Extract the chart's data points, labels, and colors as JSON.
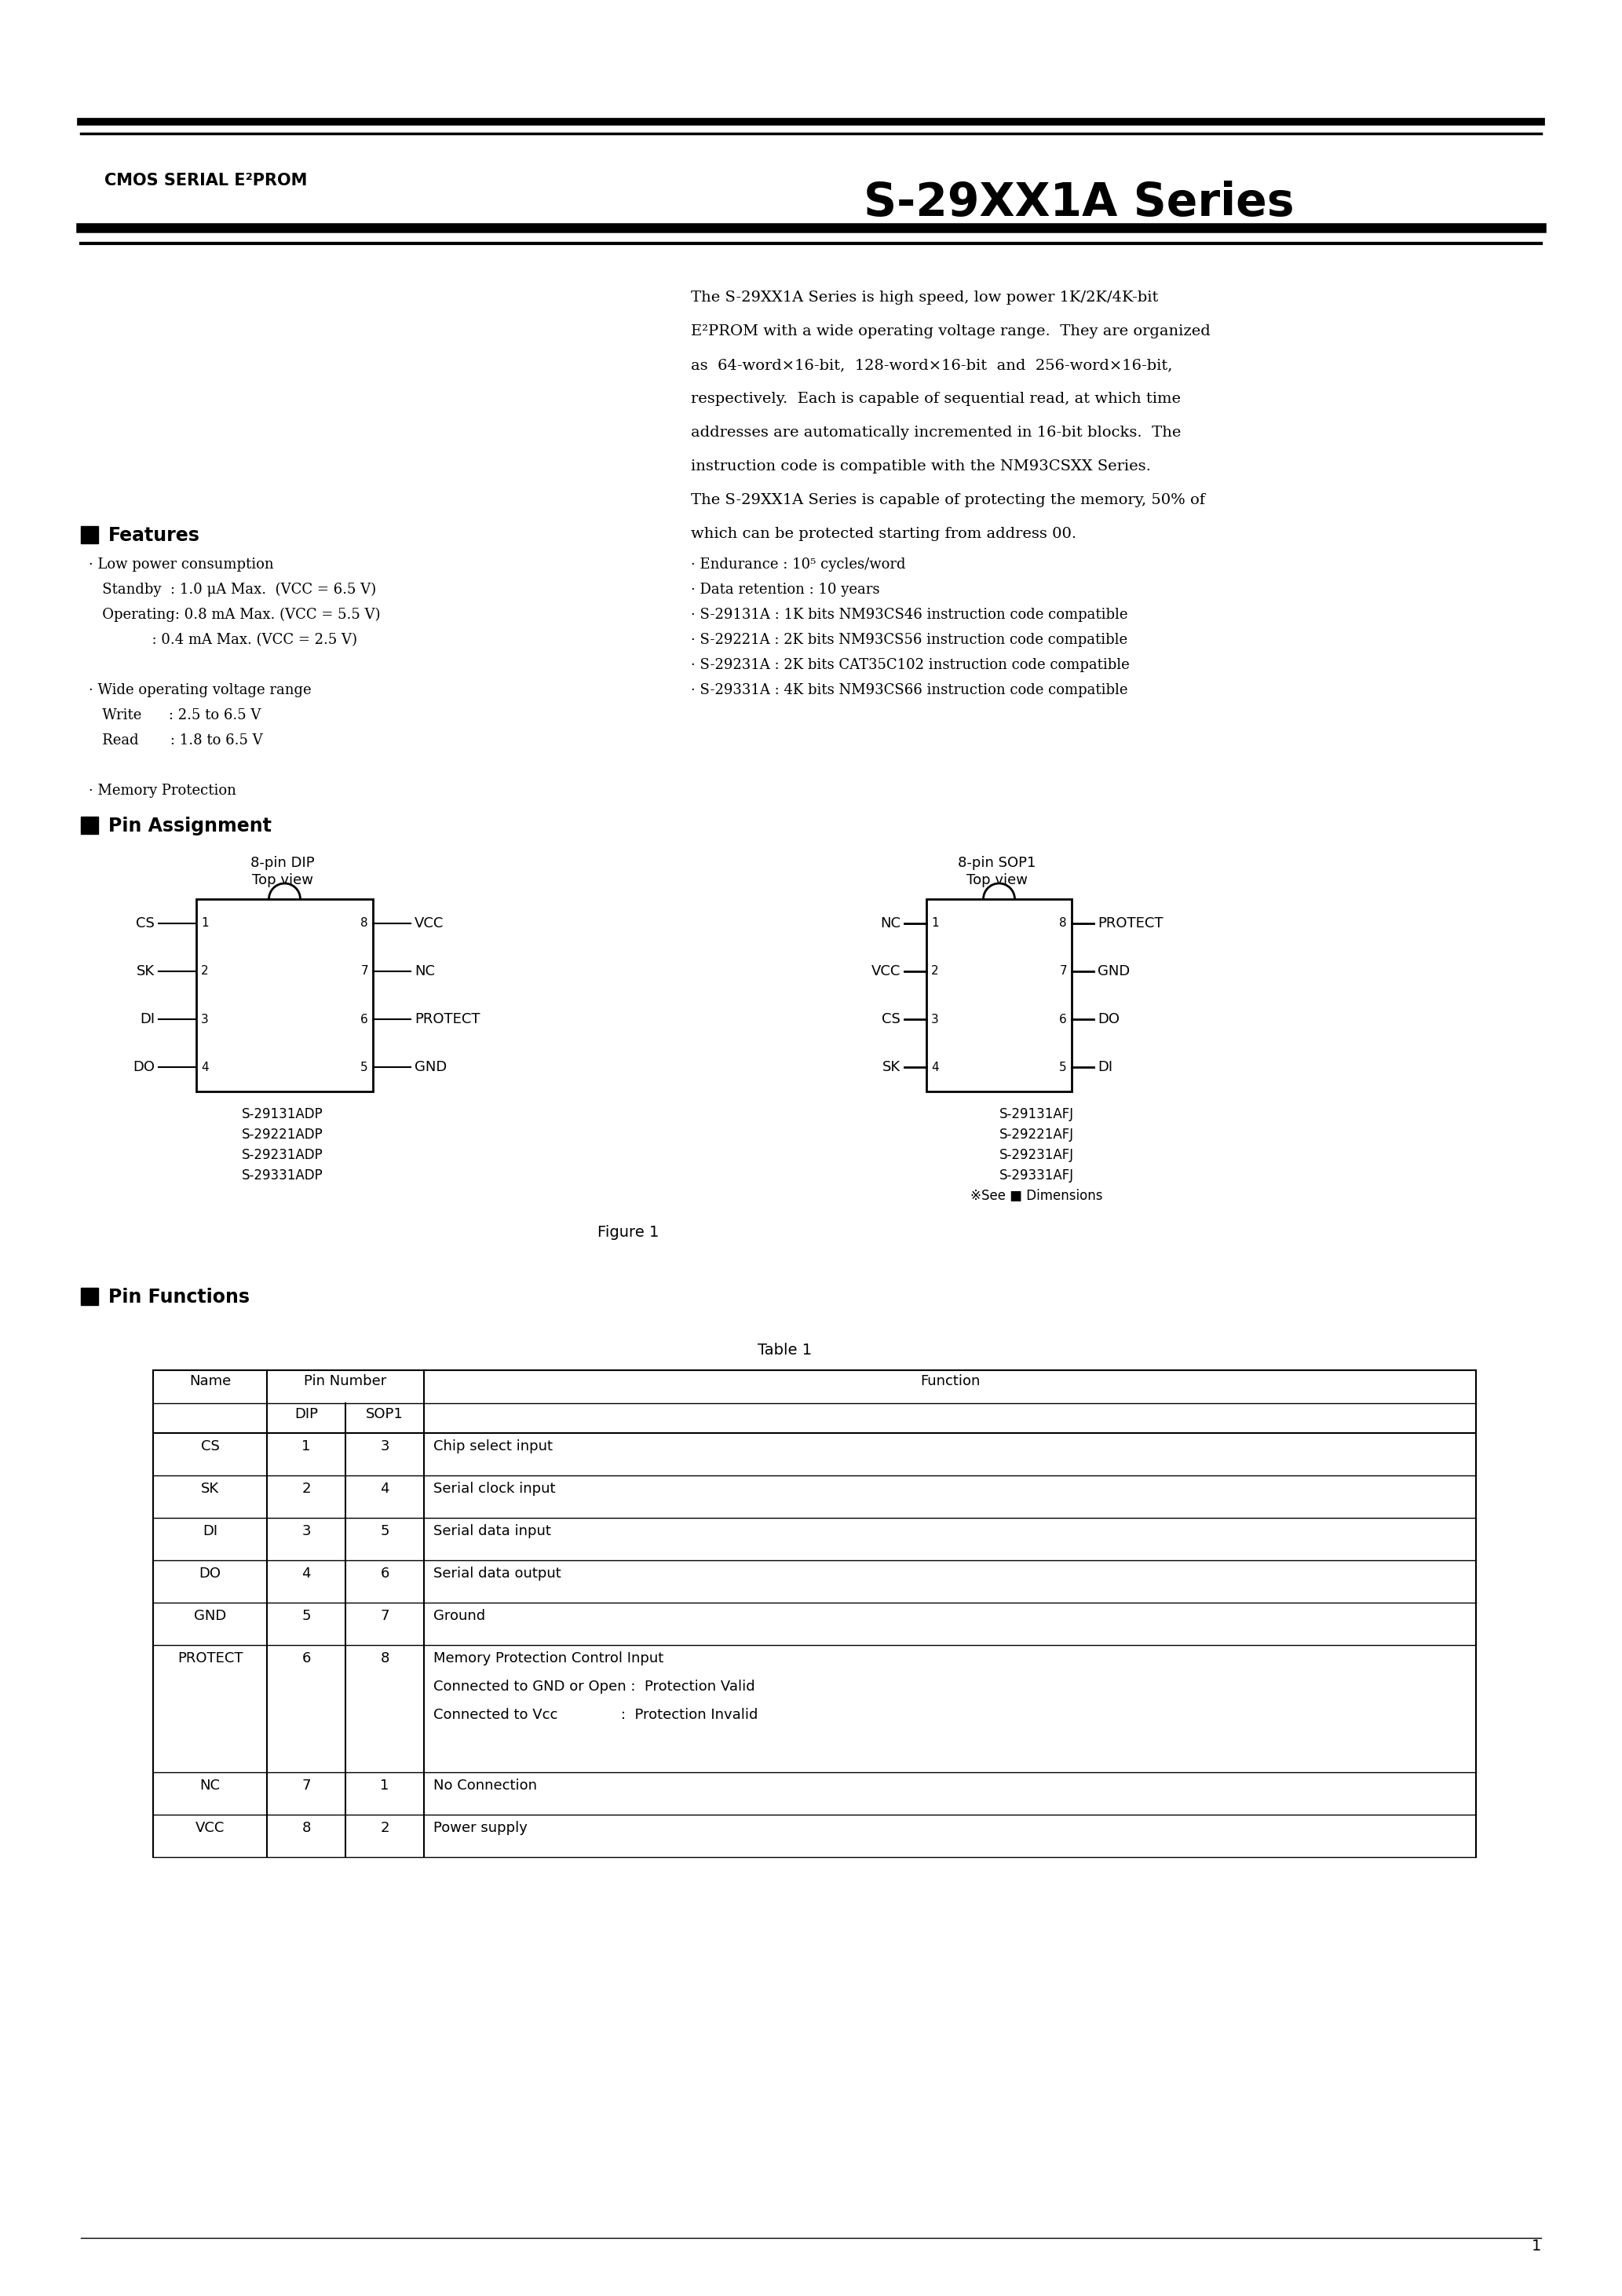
{
  "bg_color": "#ffffff",
  "header_title_left": "CMOS SERIAL E²PROM",
  "header_title_right": "S-29XX1A Series",
  "intro_text": [
    "The S-29XX1A Series is high speed, low power 1K/2K/4K-bit",
    "E²PROM with a wide operating voltage range.  They are organized",
    "as  64-word×16-bit,  128-word×16-bit  and  256-word×16-bit,",
    "respectively.  Each is capable of sequential read, at which time",
    "addresses are automatically incremented in 16-bit blocks.  The",
    "instruction code is compatible with the NM93CSXX Series.",
    "The S-29XX1A Series is capable of protecting the memory, 50% of",
    "which can be protected starting from address 00."
  ],
  "features_title": "Features",
  "features_left": [
    "· Low power consumption",
    "   Standby  : 1.0 μA Max.  (VCC = 6.5 V)",
    "   Operating: 0.8 mA Max. (VCC = 5.5 V)",
    "              : 0.4 mA Max. (VCC = 2.5 V)",
    "",
    "· Wide operating voltage range",
    "   Write      : 2.5 to 6.5 V",
    "   Read       : 1.8 to 6.5 V",
    "",
    "· Memory Protection"
  ],
  "features_right": [
    "· Endurance : 10⁵ cycles/word",
    "· Data retention : 10 years",
    "· S-29131A : 1K bits NM93CS46 instruction code compatible",
    "· S-29221A : 2K bits NM93CS56 instruction code compatible",
    "· S-29231A : 2K bits CAT35C102 instruction code compatible",
    "· S-29331A : 4K bits NM93CS66 instruction code compatible"
  ],
  "pin_assign_title": "Pin Assignment",
  "dip_pins_left": [
    "CS",
    "SK",
    "DI",
    "DO"
  ],
  "dip_pins_right": [
    "VCC",
    "NC",
    "PROTECT",
    "GND"
  ],
  "dip_numbers_left": [
    "1",
    "2",
    "3",
    "4"
  ],
  "dip_numbers_right": [
    "8",
    "7",
    "6",
    "5"
  ],
  "sop_pins_left": [
    "NC",
    "VCC",
    "CS",
    "SK"
  ],
  "sop_pins_right": [
    "PROTECT",
    "GND",
    "DO",
    "DI"
  ],
  "sop_numbers_left": [
    "1",
    "2",
    "3",
    "4"
  ],
  "sop_numbers_right": [
    "8",
    "7",
    "6",
    "5"
  ],
  "dip_model_names": [
    "S-29131ADP",
    "S-29221ADP",
    "S-29231ADP",
    "S-29331ADP"
  ],
  "sop_model_names": [
    "S-29131AFJ",
    "S-29221AFJ",
    "S-29231AFJ",
    "S-29331AFJ"
  ],
  "figure_label": "Figure 1",
  "see_dimensions": "※See ■ Dimensions",
  "pin_func_title": "Pin Functions",
  "table_title": "Table 1",
  "table_rows": [
    [
      "CS",
      "1",
      "3",
      "Chip select input"
    ],
    [
      "SK",
      "2",
      "4",
      "Serial clock input"
    ],
    [
      "DI",
      "3",
      "5",
      "Serial data input"
    ],
    [
      "DO",
      "4",
      "6",
      "Serial data output"
    ],
    [
      "GND",
      "5",
      "7",
      "Ground"
    ],
    [
      "PROTECT",
      "6",
      "8",
      "Memory Protection Control Input\nConnected to GND or Open :  Protection Valid\nConnected to Vcc              :  Protection Invalid"
    ],
    [
      "NC",
      "7",
      "1",
      "No Connection"
    ],
    [
      "VCC",
      "8",
      "2",
      "Power supply"
    ]
  ],
  "page_number": "1"
}
